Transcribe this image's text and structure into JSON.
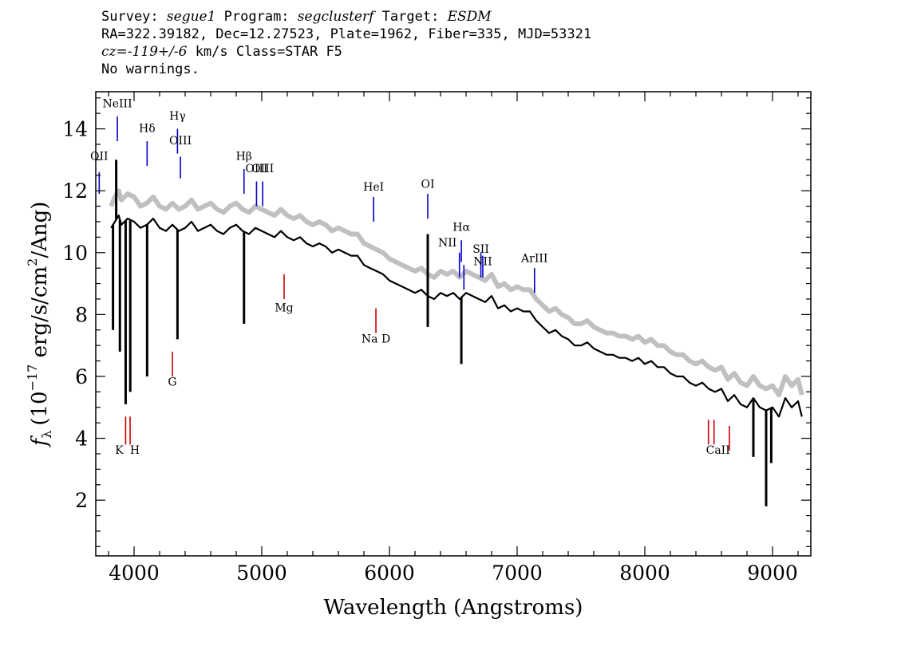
{
  "header": {
    "line1": {
      "survey_label": "Survey:",
      "survey": "segue1",
      "program_label": "Program:",
      "program": "segclusterf",
      "target_label": "Target:",
      "target": "ESDM"
    },
    "line2": "RA=322.39182, Dec=12.27523, Plate=1962, Fiber=335, MJD=53321",
    "line3": {
      "cz": "cz=-119+/-6",
      "rest": " km/s Class=STAR F5"
    },
    "line4": "No warnings."
  },
  "chart_data": {
    "type": "line",
    "xlabel": "Wavelength (Angstroms)",
    "ylabel": "f_λ (10^-17 erg/s/cm^2/Ang)",
    "ylabel_parts": {
      "f": "f",
      "sub": "λ",
      "pre": "(10",
      "exp": "−17",
      "mid": " erg/s/cm",
      "exp2": "2",
      "post": "/Ang)"
    },
    "xlim": [
      3700,
      9300
    ],
    "ylim": [
      0.2,
      15.2
    ],
    "x_ticks": [
      4000,
      5000,
      6000,
      7000,
      8000,
      9000
    ],
    "x_tick_labels": [
      "4000",
      "5000",
      "6000",
      "7000",
      "8000",
      "9000"
    ],
    "y_ticks": [
      2,
      4,
      6,
      8,
      10,
      12,
      14
    ],
    "y_tick_labels": [
      "2",
      "4",
      "6",
      "8",
      "10",
      "12",
      "14"
    ],
    "series": [
      {
        "role": "spectrum",
        "color": "#000000",
        "x": [
          3820,
          3850,
          3880,
          3900,
          3950,
          4000,
          4050,
          4100,
          4150,
          4200,
          4250,
          4300,
          4350,
          4400,
          4450,
          4500,
          4550,
          4600,
          4650,
          4700,
          4750,
          4800,
          4850,
          4900,
          4950,
          5000,
          5050,
          5100,
          5150,
          5200,
          5250,
          5300,
          5350,
          5400,
          5450,
          5500,
          5550,
          5600,
          5650,
          5700,
          5750,
          5800,
          5850,
          5900,
          5950,
          6000,
          6050,
          6100,
          6150,
          6200,
          6250,
          6300,
          6350,
          6400,
          6450,
          6500,
          6550,
          6600,
          6650,
          6700,
          6750,
          6800,
          6850,
          6900,
          6950,
          7000,
          7050,
          7100,
          7150,
          7200,
          7250,
          7300,
          7350,
          7400,
          7450,
          7500,
          7550,
          7600,
          7650,
          7700,
          7750,
          7800,
          7850,
          7900,
          7950,
          8000,
          8050,
          8100,
          8150,
          8200,
          8250,
          8300,
          8350,
          8400,
          8450,
          8500,
          8550,
          8600,
          8650,
          8700,
          8750,
          8800,
          8850,
          8900,
          8950,
          9000,
          9050,
          9100,
          9150,
          9200,
          9230
        ],
        "y": [
          10.8,
          11.0,
          11.2,
          10.9,
          11.1,
          11.0,
          10.8,
          10.9,
          11.1,
          10.8,
          10.7,
          10.9,
          10.7,
          10.8,
          11.0,
          10.7,
          10.8,
          10.9,
          10.7,
          10.6,
          10.8,
          10.9,
          10.7,
          10.6,
          10.8,
          10.7,
          10.6,
          10.5,
          10.7,
          10.5,
          10.4,
          10.5,
          10.3,
          10.2,
          10.3,
          10.2,
          10.0,
          10.1,
          10.0,
          9.9,
          9.9,
          9.6,
          9.5,
          9.4,
          9.3,
          9.1,
          9.0,
          8.9,
          8.8,
          8.7,
          8.8,
          8.6,
          8.5,
          8.7,
          8.6,
          8.7,
          8.5,
          8.7,
          8.6,
          8.5,
          8.4,
          8.6,
          8.2,
          8.3,
          8.1,
          8.2,
          8.1,
          8.1,
          7.8,
          7.6,
          7.4,
          7.5,
          7.3,
          7.2,
          7.0,
          7.0,
          7.1,
          6.9,
          6.8,
          6.7,
          6.7,
          6.6,
          6.6,
          6.5,
          6.6,
          6.4,
          6.5,
          6.3,
          6.3,
          6.1,
          6.0,
          6.0,
          5.8,
          5.7,
          5.8,
          5.6,
          5.5,
          5.6,
          5.2,
          5.4,
          5.1,
          5.0,
          5.3,
          5.0,
          4.9,
          5.0,
          4.7,
          5.3,
          5.0,
          5.2,
          4.7
        ]
      },
      {
        "role": "error",
        "color": "#c0c0c0",
        "x": [
          3820,
          3850,
          3880,
          3900,
          3950,
          4000,
          4050,
          4100,
          4150,
          4200,
          4250,
          4300,
          4350,
          4400,
          4450,
          4500,
          4550,
          4600,
          4650,
          4700,
          4750,
          4800,
          4850,
          4900,
          4950,
          5000,
          5050,
          5100,
          5150,
          5200,
          5250,
          5300,
          5350,
          5400,
          5450,
          5500,
          5550,
          5600,
          5650,
          5700,
          5750,
          5800,
          5850,
          5900,
          5950,
          6000,
          6050,
          6100,
          6150,
          6200,
          6250,
          6300,
          6350,
          6400,
          6450,
          6500,
          6550,
          6600,
          6650,
          6700,
          6750,
          6800,
          6850,
          6900,
          6950,
          7000,
          7050,
          7100,
          7150,
          7200,
          7250,
          7300,
          7350,
          7400,
          7450,
          7500,
          7550,
          7600,
          7650,
          7700,
          7750,
          7800,
          7850,
          7900,
          7950,
          8000,
          8050,
          8100,
          8150,
          8200,
          8250,
          8300,
          8350,
          8400,
          8450,
          8500,
          8550,
          8600,
          8650,
          8700,
          8750,
          8800,
          8850,
          8900,
          8950,
          9000,
          9050,
          9100,
          9150,
          9200,
          9230
        ],
        "y": [
          11.5,
          11.8,
          12.0,
          11.7,
          11.9,
          11.8,
          11.5,
          11.6,
          11.8,
          11.5,
          11.4,
          11.6,
          11.4,
          11.5,
          11.7,
          11.4,
          11.5,
          11.6,
          11.4,
          11.3,
          11.5,
          11.6,
          11.4,
          11.3,
          11.5,
          11.4,
          11.3,
          11.2,
          11.4,
          11.2,
          11.1,
          11.2,
          11.0,
          10.9,
          11.0,
          10.9,
          10.7,
          10.8,
          10.7,
          10.6,
          10.6,
          10.3,
          10.2,
          10.1,
          10.0,
          9.8,
          9.7,
          9.6,
          9.5,
          9.4,
          9.5,
          9.3,
          9.2,
          9.4,
          9.3,
          9.4,
          9.2,
          9.4,
          9.3,
          9.2,
          9.1,
          9.3,
          8.9,
          9.0,
          8.8,
          8.9,
          8.8,
          8.8,
          8.5,
          8.3,
          8.1,
          8.2,
          8.0,
          7.9,
          7.7,
          7.7,
          7.8,
          7.6,
          7.5,
          7.4,
          7.4,
          7.3,
          7.3,
          7.2,
          7.3,
          7.1,
          7.2,
          7.0,
          7.0,
          6.8,
          6.7,
          6.7,
          6.5,
          6.4,
          6.5,
          6.3,
          6.2,
          6.3,
          5.9,
          6.1,
          5.8,
          5.7,
          6.0,
          5.7,
          5.6,
          5.7,
          5.4,
          6.0,
          5.7,
          5.9,
          5.4
        ]
      }
    ],
    "absorption_dips": [
      {
        "x": 3835,
        "y": 7.5
      },
      {
        "x": 3889,
        "y": 6.8
      },
      {
        "x": 3934,
        "y": 5.1
      },
      {
        "x": 3970,
        "y": 5.5
      },
      {
        "x": 4102,
        "y": 6.0
      },
      {
        "x": 4340,
        "y": 7.2
      },
      {
        "x": 4861,
        "y": 7.7
      },
      {
        "x": 6300,
        "y": 7.6
      },
      {
        "x": 6563,
        "y": 6.4
      },
      {
        "x": 8850,
        "y": 3.4
      },
      {
        "x": 8950,
        "y": 1.8
      },
      {
        "x": 8990,
        "y": 3.2
      }
    ],
    "emission_spikes": [
      {
        "x": 3860,
        "y": 13.0
      },
      {
        "x": 6300,
        "y": 10.6
      }
    ],
    "emission_lines": [
      {
        "label": "OII",
        "x": 3727,
        "y_low": 11.9,
        "y_high": 12.6,
        "label_y": 13.0,
        "color": "#0000cc"
      },
      {
        "label": "NeIII",
        "x": 3869,
        "y_low": 13.6,
        "y_high": 14.4,
        "label_y": 14.7,
        "color": "#0000cc"
      },
      {
        "label": "Hδ",
        "x": 4102,
        "y_low": 12.8,
        "y_high": 13.6,
        "label_y": 13.9,
        "color": "#0000cc"
      },
      {
        "label": "Hγ",
        "x": 4340,
        "y_low": 13.2,
        "y_high": 14.0,
        "label_y": 14.3,
        "color": "#0000cc"
      },
      {
        "label": "OIII",
        "x": 4363,
        "y_low": 12.4,
        "y_high": 13.1,
        "label_y": 13.5,
        "color": "#0000cc"
      },
      {
        "label": "Hβ",
        "x": 4861,
        "y_low": 11.9,
        "y_high": 12.7,
        "label_y": 13.0,
        "color": "#0000cc"
      },
      {
        "label": "OIII",
        "x": 4959,
        "y_low": 11.5,
        "y_high": 12.3,
        "label_y": 12.6,
        "color": "#0000cc"
      },
      {
        "label": "OIII",
        "x": 5007,
        "y_low": 11.5,
        "y_high": 12.3,
        "label_y": 12.6,
        "color": "#0000cc"
      },
      {
        "label": "HeI",
        "x": 5876,
        "y_low": 11.0,
        "y_high": 11.8,
        "label_y": 12.0,
        "color": "#0000cc"
      },
      {
        "label": "OI",
        "x": 6300,
        "y_low": 11.1,
        "y_high": 11.9,
        "label_y": 12.1,
        "color": "#0000cc"
      },
      {
        "label": "NII",
        "x": 6548,
        "y_low": 9.2,
        "y_high": 10.0,
        "label_y": 10.2,
        "label_dx": -15,
        "color": "#0000cc"
      },
      {
        "label": "Hα",
        "x": 6563,
        "y_low": 9.7,
        "y_high": 10.4,
        "label_y": 10.7,
        "color": "#0000cc"
      },
      {
        "label": "NII",
        "x": 6583,
        "y_low": 8.8,
        "y_high": 9.6,
        "label_y": null,
        "color": "#0000cc"
      },
      {
        "label": "SII",
        "x": 6716,
        "y_low": 9.2,
        "y_high": 10.0,
        "label_y": 10.0,
        "color": "#0000cc"
      },
      {
        "label": "NII",
        "x": 6731,
        "y_low": 9.2,
        "y_high": 9.9,
        "label_y": 9.6,
        "color": "#0000cc"
      },
      {
        "label": "ArIII",
        "x": 7136,
        "y_low": 8.7,
        "y_high": 9.5,
        "label_y": 9.7,
        "color": "#0000cc"
      }
    ],
    "absorption_lines": [
      {
        "label": "K",
        "x": 3934,
        "y_low": 3.8,
        "y_high": 4.7,
        "label_y": 3.5,
        "label_dx": -8,
        "color": "#cc0000"
      },
      {
        "label": "H",
        "x": 3969,
        "y_low": 3.8,
        "y_high": 4.7,
        "label_y": 3.5,
        "label_dx": 6,
        "color": "#cc0000"
      },
      {
        "label": "G",
        "x": 4300,
        "y_low": 6.0,
        "y_high": 6.8,
        "label_y": 5.7,
        "color": "#cc0000"
      },
      {
        "label": "Mg",
        "x": 5175,
        "y_low": 8.5,
        "y_high": 9.3,
        "label_y": 8.1,
        "color": "#cc0000"
      },
      {
        "label": "Na D",
        "x": 5894,
        "y_low": 7.4,
        "y_high": 8.2,
        "label_y": 7.1,
        "color": "#cc0000"
      },
      {
        "label": "CaII",
        "x": 8498,
        "y_low": 3.8,
        "y_high": 4.6,
        "label_y": 3.5,
        "label_dx": 12,
        "color": "#cc0000"
      },
      {
        "label": "",
        "x": 8542,
        "y_low": 3.8,
        "y_high": 4.6,
        "label_y": null,
        "color": "#cc0000"
      },
      {
        "label": "",
        "x": 8662,
        "y_low": 3.6,
        "y_high": 4.4,
        "label_y": null,
        "color": "#cc0000"
      }
    ]
  }
}
